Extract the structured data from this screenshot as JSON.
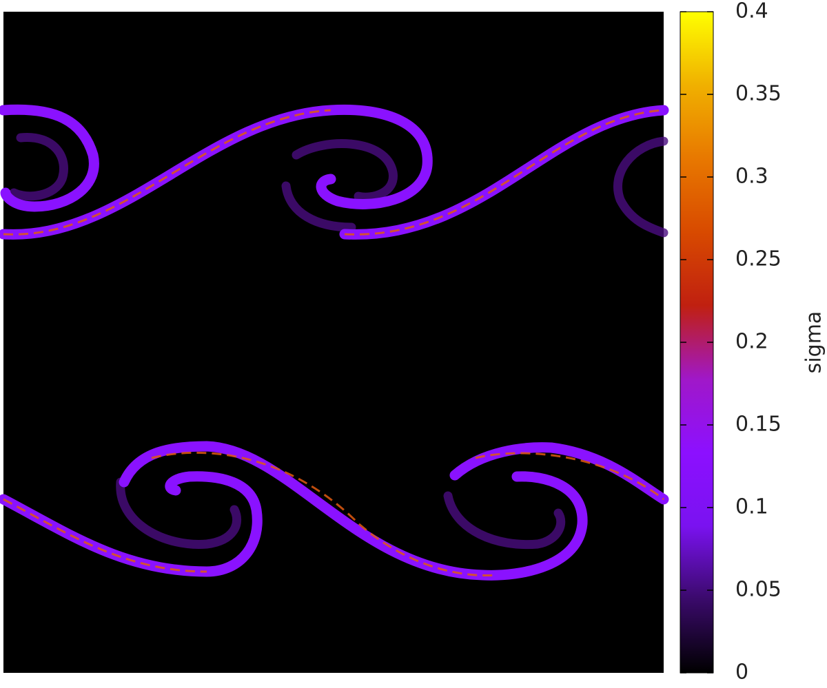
{
  "chart_data": {
    "type": "heatmap",
    "colorbar": {
      "label": "sigma",
      "lim": [
        0,
        0.4
      ],
      "ticks": [
        0,
        0.05,
        0.1,
        0.15,
        0.2,
        0.25,
        0.3,
        0.35,
        0.4
      ],
      "palette": [
        "#000000",
        "#3a0a6a",
        "#7a12f0",
        "#8c10ff",
        "#a018c8",
        "#c02010",
        "#d84a00",
        "#e87800",
        "#f0b000",
        "#ffff00"
      ]
    }
  }
}
